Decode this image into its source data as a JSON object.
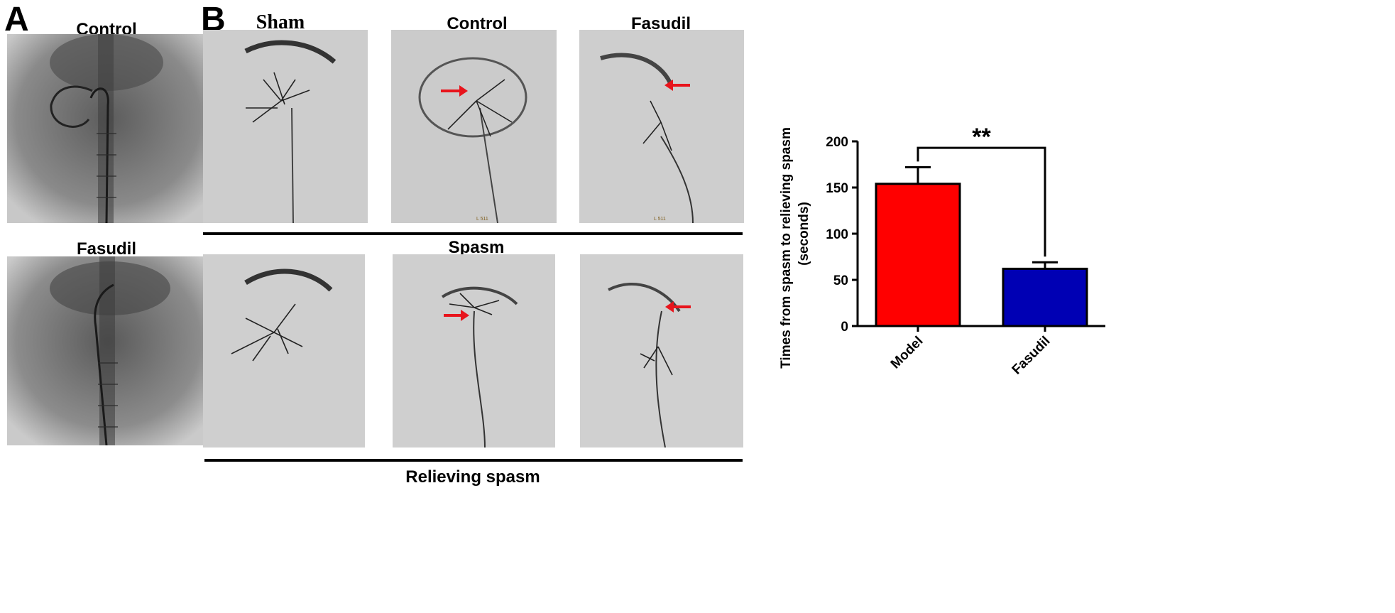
{
  "panel_a": {
    "letter": "A",
    "top_label": "Control",
    "bottom_label": "Fasudil"
  },
  "panel_b": {
    "letter": "B",
    "columns": [
      "Sham",
      "Control",
      "Fasudil"
    ],
    "row1_caption": "Spasm",
    "row2_caption": "Relieving spasm",
    "image_stamp": "L 511",
    "arrow_color": "#e8141c"
  },
  "chart_data": {
    "type": "bar",
    "categories": [
      "Model",
      "Fasudil"
    ],
    "values": [
      154,
      62
    ],
    "error": [
      18,
      7
    ],
    "colors": [
      "#ff0000",
      "#0000b4"
    ],
    "ylabel_line1": "Times from spasm to relieving spasm",
    "ylabel_line2": "(seconds)",
    "ylim": [
      0,
      200
    ],
    "yticks": [
      "0",
      "50",
      "100",
      "150",
      "200"
    ],
    "significance": "**",
    "grid": false
  }
}
